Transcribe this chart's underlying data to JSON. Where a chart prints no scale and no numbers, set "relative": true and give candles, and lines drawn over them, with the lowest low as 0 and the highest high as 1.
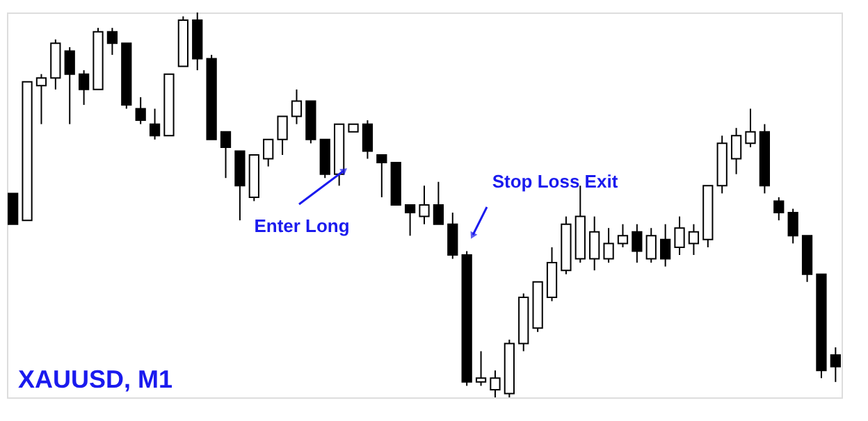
{
  "chart_data": {
    "type": "candlestick",
    "relative": true,
    "tick_labels": false,
    "grid": false,
    "categories": [
      null,
      null,
      null,
      null,
      null,
      null,
      null,
      null,
      null,
      null,
      null,
      null,
      null,
      null,
      null,
      null,
      null,
      null,
      null,
      null,
      null,
      null,
      null,
      null,
      null,
      null,
      null,
      null,
      null,
      null,
      null,
      null,
      null,
      null,
      null,
      null,
      null,
      null,
      null,
      null,
      null,
      null,
      null,
      null,
      null,
      null,
      null,
      null,
      null,
      null,
      null,
      null,
      null,
      null,
      null,
      null,
      null,
      null,
      null
    ],
    "ohlc": [
      [
        0.53,
        0.53,
        0.45,
        0.45
      ],
      [
        0.46,
        0.82,
        0.46,
        0.82
      ],
      [
        0.81,
        0.84,
        0.71,
        0.83
      ],
      [
        0.83,
        0.93,
        0.8,
        0.92
      ],
      [
        0.9,
        0.91,
        0.71,
        0.84
      ],
      [
        0.84,
        0.85,
        0.76,
        0.8
      ],
      [
        0.8,
        0.96,
        0.8,
        0.95
      ],
      [
        0.95,
        0.96,
        0.89,
        0.92
      ],
      [
        0.92,
        0.92,
        0.75,
        0.76
      ],
      [
        0.75,
        0.78,
        0.71,
        0.72
      ],
      [
        0.71,
        0.75,
        0.67,
        0.68
      ],
      [
        0.68,
        0.84,
        0.68,
        0.84
      ],
      [
        0.86,
        0.99,
        0.86,
        0.98
      ],
      [
        0.98,
        1.0,
        0.85,
        0.88
      ],
      [
        0.88,
        0.89,
        0.67,
        0.67
      ],
      [
        0.69,
        0.69,
        0.57,
        0.65
      ],
      [
        0.64,
        0.64,
        0.46,
        0.55
      ],
      [
        0.52,
        0.63,
        0.51,
        0.63
      ],
      [
        0.62,
        0.67,
        0.6,
        0.67
      ],
      [
        0.67,
        0.73,
        0.63,
        0.73
      ],
      [
        0.73,
        0.8,
        0.71,
        0.77
      ],
      [
        0.77,
        0.77,
        0.66,
        0.67
      ],
      [
        0.67,
        0.67,
        0.57,
        0.58
      ],
      [
        0.58,
        0.71,
        0.55,
        0.71
      ],
      [
        0.69,
        0.71,
        0.69,
        0.71
      ],
      [
        0.71,
        0.72,
        0.62,
        0.64
      ],
      [
        0.63,
        0.63,
        0.52,
        0.61
      ],
      [
        0.61,
        0.61,
        0.5,
        0.5
      ],
      [
        0.5,
        0.5,
        0.42,
        0.48
      ],
      [
        0.47,
        0.55,
        0.45,
        0.5
      ],
      [
        0.5,
        0.56,
        0.45,
        0.45
      ],
      [
        0.45,
        0.48,
        0.36,
        0.37
      ],
      [
        0.37,
        0.38,
        0.03,
        0.04
      ],
      [
        0.04,
        0.12,
        0.03,
        0.05
      ],
      [
        0.02,
        0.07,
        0.0,
        0.05
      ],
      [
        0.01,
        0.15,
        0.0,
        0.14
      ],
      [
        0.14,
        0.27,
        0.12,
        0.26
      ],
      [
        0.18,
        0.3,
        0.17,
        0.3
      ],
      [
        0.26,
        0.39,
        0.25,
        0.35
      ],
      [
        0.33,
        0.47,
        0.32,
        0.45
      ],
      [
        0.36,
        0.55,
        0.35,
        0.47
      ],
      [
        0.36,
        0.47,
        0.33,
        0.43
      ],
      [
        0.36,
        0.44,
        0.35,
        0.4
      ],
      [
        0.4,
        0.45,
        0.39,
        0.42
      ],
      [
        0.43,
        0.45,
        0.35,
        0.38
      ],
      [
        0.36,
        0.44,
        0.35,
        0.42
      ],
      [
        0.41,
        0.45,
        0.34,
        0.36
      ],
      [
        0.39,
        0.47,
        0.37,
        0.44
      ],
      [
        0.4,
        0.45,
        0.37,
        0.43
      ],
      [
        0.41,
        0.55,
        0.39,
        0.55
      ],
      [
        0.55,
        0.68,
        0.53,
        0.66
      ],
      [
        0.62,
        0.7,
        0.58,
        0.68
      ],
      [
        0.66,
        0.75,
        0.65,
        0.69
      ],
      [
        0.69,
        0.71,
        0.53,
        0.55
      ],
      [
        0.51,
        0.52,
        0.46,
        0.48
      ],
      [
        0.48,
        0.49,
        0.4,
        0.42
      ],
      [
        0.42,
        0.42,
        0.3,
        0.32
      ],
      [
        0.32,
        0.32,
        0.05,
        0.07
      ],
      [
        0.11,
        0.13,
        0.04,
        0.08
      ]
    ],
    "colors": [
      "#000000",
      "#ffffff",
      "#ffffff",
      "#ffffff",
      "#000000",
      "#000000",
      "#ffffff",
      "#000000",
      "#000000",
      "#000000",
      "#000000",
      "#ffffff",
      "#ffffff",
      "#000000",
      "#000000",
      "#000000",
      "#000000",
      "#ffffff",
      "#ffffff",
      "#ffffff",
      "#ffffff",
      "#000000",
      "#000000",
      "#ffffff",
      "#ffffff",
      "#000000",
      "#000000",
      "#000000",
      "#000000",
      "#ffffff",
      "#000000",
      "#000000",
      "#000000",
      "#ffffff",
      "#ffffff",
      "#ffffff",
      "#ffffff",
      "#ffffff",
      "#ffffff",
      "#ffffff",
      "#ffffff",
      "#ffffff",
      "#ffffff",
      "#ffffff",
      "#000000",
      "#ffffff",
      "#000000",
      "#ffffff",
      "#ffffff",
      "#ffffff",
      "#ffffff",
      "#ffffff",
      "#ffffff",
      "#000000",
      "#000000",
      "#000000",
      "#000000",
      "#000000",
      "#000000"
    ],
    "annotations": [
      "Enter Long",
      "Stop Loss Exit",
      "XAUUSD, M1"
    ]
  }
}
